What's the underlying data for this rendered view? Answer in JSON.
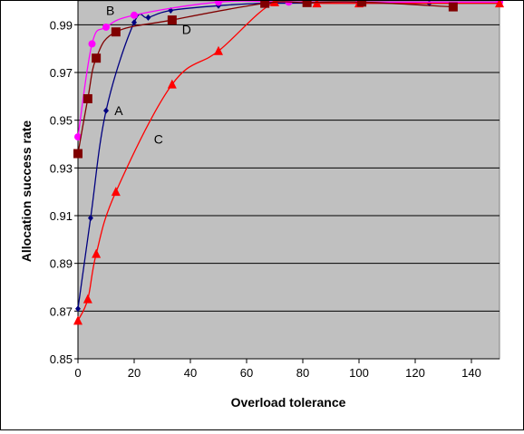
{
  "chart_data": {
    "type": "scatter",
    "title": "",
    "xlabel": "Overload tolerance",
    "ylabel": "Allocation success rate",
    "xlim": [
      0,
      150
    ],
    "ylim": [
      0.85,
      1.0
    ],
    "x_ticks": [
      0,
      20,
      40,
      60,
      80,
      100,
      120,
      140
    ],
    "y_ticks": [
      0.85,
      0.87,
      0.89,
      0.91,
      0.93,
      0.95,
      0.97,
      0.99
    ],
    "y_tick_labels": [
      "0.85",
      "0.87",
      "0.89",
      "0.91",
      "0.93",
      "0.95",
      "0.97",
      "0.99"
    ],
    "grid": "horizontal",
    "background_color": "#c0c0c0",
    "series": [
      {
        "name": "A",
        "color": "#000080",
        "marker": "diamond",
        "points": [
          [
            0,
            0.871
          ],
          [
            4.5,
            0.909
          ],
          [
            10,
            0.954
          ],
          [
            20,
            0.991
          ],
          [
            25,
            0.993
          ],
          [
            33,
            0.996
          ],
          [
            50,
            0.998
          ],
          [
            67,
            0.999
          ],
          [
            100,
            0.999
          ],
          [
            125,
            0.999
          ],
          [
            150,
            0.999
          ]
        ],
        "label_point": [
          13,
          0.954
        ]
      },
      {
        "name": "B",
        "color": "#ff00ff",
        "marker": "circle",
        "points": [
          [
            0,
            0.943
          ],
          [
            5,
            0.982
          ],
          [
            10,
            0.989
          ],
          [
            20,
            0.994
          ],
          [
            50,
            0.9995
          ],
          [
            75,
            0.9995
          ],
          [
            100,
            0.9995
          ],
          [
            150,
            0.9995
          ]
        ],
        "label_point": [
          10,
          0.996
        ]
      },
      {
        "name": "C",
        "color": "#ff0000",
        "marker": "triangle",
        "points": [
          [
            0,
            0.866
          ],
          [
            3.5,
            0.875
          ],
          [
            6.5,
            0.894
          ],
          [
            13.5,
            0.92
          ],
          [
            33.5,
            0.965
          ],
          [
            50,
            0.979
          ],
          [
            70,
            0.9995
          ],
          [
            85,
            0.999
          ],
          [
            100,
            0.999
          ],
          [
            150,
            0.999
          ]
        ],
        "label_point": [
          27,
          0.942
        ]
      },
      {
        "name": "D",
        "color": "#800000",
        "marker": "square",
        "points": [
          [
            0,
            0.936
          ],
          [
            3.5,
            0.959
          ],
          [
            6.5,
            0.976
          ],
          [
            13.5,
            0.987
          ],
          [
            33.5,
            0.992
          ],
          [
            66.5,
            0.999
          ],
          [
            81.5,
            0.9993
          ],
          [
            101,
            0.9995
          ],
          [
            133.5,
            0.9975
          ]
        ],
        "label_point": [
          37,
          0.988
        ]
      }
    ]
  }
}
